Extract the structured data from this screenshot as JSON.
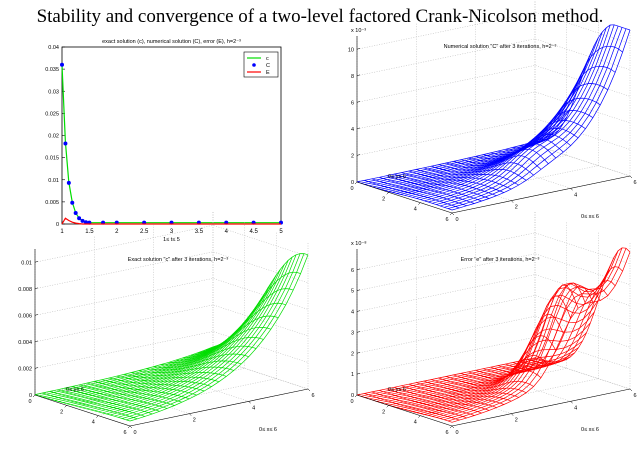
{
  "page": {
    "title": "Stability and convergence of a two-level factored Crank-Nicolson method."
  },
  "colors": {
    "c": "#00dd00",
    "C": "#0000ff",
    "E": "#ff0000",
    "axis": "#000000",
    "grid": "#b0b0b0"
  },
  "chart_data": [
    {
      "type": "line",
      "title": "exact solution (c), numerical solution (C), error (E), h=2⁻³",
      "xlabel": "1≤ t≤ 5",
      "ylabel": "",
      "xlim": [
        1,
        5
      ],
      "ylim": [
        0,
        0.04
      ],
      "xticks": [
        "1",
        "1.5",
        "2",
        "2.5",
        "3",
        "3.5",
        "4",
        "4.5",
        "5"
      ],
      "yticks": [
        "0",
        "0.005",
        "0.01",
        "0.015",
        "0.02",
        "0.025",
        "0.03",
        "0.035",
        "0.04"
      ],
      "legend_position": "top-right",
      "x": [
        1.0,
        1.0625,
        1.125,
        1.1875,
        1.25,
        1.3125,
        1.375,
        1.4375,
        1.5,
        1.75,
        2.0,
        2.5,
        3.0,
        3.5,
        4.0,
        4.5,
        5.0
      ],
      "series": [
        {
          "name": "c",
          "style": "line",
          "values": [
            0.036,
            0.0185,
            0.0095,
            0.0049,
            0.0025,
            0.0013,
            0.0007,
            0.0004,
            0.0003,
            0.0003,
            0.0003,
            0.0003,
            0.0003,
            0.0003,
            0.0003,
            0.0003,
            0.0003
          ]
        },
        {
          "name": "C",
          "style": "markers",
          "values": [
            0.036,
            0.0182,
            0.0093,
            0.0048,
            0.0025,
            0.0013,
            0.0007,
            0.0004,
            0.0003,
            0.0003,
            0.0003,
            0.0003,
            0.0003,
            0.0003,
            0.0003,
            0.0003,
            0.0003
          ]
        },
        {
          "name": "E",
          "style": "line",
          "values": [
            0.0,
            0.0013,
            0.0008,
            0.0004,
            0.0002,
            0.0001,
            0.0,
            0.0,
            0.0,
            0.0,
            0.0,
            0.0,
            0.0,
            0.0,
            0.0,
            0.0,
            0.0
          ]
        }
      ]
    },
    {
      "type": "surface",
      "title": "Numerical solution \"C\" after 3 iterations, h=2⁻³",
      "series_color": "#0000ff",
      "zlim": [
        0,
        11
      ],
      "zticks": [
        "0",
        "2",
        "4",
        "6",
        "8",
        "10"
      ],
      "zscale": "x 10⁻³",
      "peak": 11,
      "x_ticks": [
        "0",
        "2",
        "4",
        "6"
      ],
      "y_ticks": [
        "0",
        "2",
        "4",
        "6"
      ],
      "xlabel": "0≤ x≤ 6",
      "ylabel": "0≤ y≤ 6"
    },
    {
      "type": "surface",
      "title": "Exact solution \"c\" after 3 iterations, h=2⁻³",
      "series_color": "#00dd00",
      "zlim": [
        0,
        0.011
      ],
      "zticks": [
        "0",
        "0.002",
        "0.004",
        "0.006",
        "0.008",
        "0.01"
      ],
      "zscale": "",
      "peak": 0.011,
      "x_ticks": [
        "0",
        "2",
        "4",
        "6"
      ],
      "y_ticks": [
        "0",
        "2",
        "4",
        "6"
      ],
      "xlabel": "0≤ x≤ 6",
      "ylabel": "0≤ y≤ 6"
    },
    {
      "type": "surface",
      "title": "Error \"e\" after 3 iterations, h=2⁻³",
      "series_color": "#ff0000",
      "zlim": [
        0,
        7
      ],
      "zticks": [
        "0",
        "1",
        "2",
        "3",
        "4",
        "5",
        "6"
      ],
      "zscale": "x 10⁻⁸",
      "peak": 7,
      "x_ticks": [
        "0",
        "2",
        "4",
        "6"
      ],
      "y_ticks": [
        "0",
        "2",
        "4",
        "6"
      ],
      "xlabel": "0≤ x≤ 6",
      "ylabel": "0≤ y≤ 6"
    }
  ]
}
